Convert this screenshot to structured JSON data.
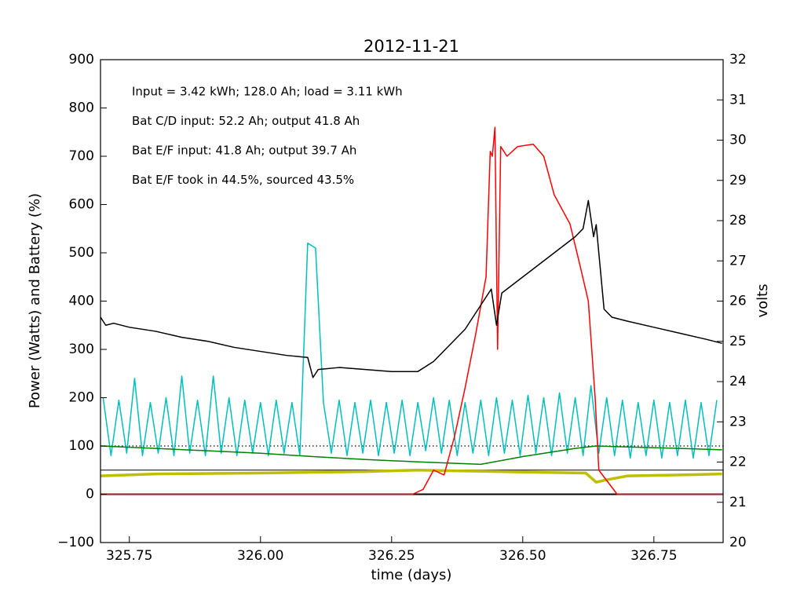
{
  "chart_data": {
    "type": "line",
    "title": "2012-11-21",
    "xlabel": "time (days)",
    "ylabel": "Power (Watts) and Battery (%)",
    "y2label": "volts",
    "annotations": [
      "Input = 3.42 kWh; 128.0 Ah; load = 3.11 kWh",
      "Bat C/D input: 52.2 Ah; output 41.8 Ah",
      "Bat E/F input: 41.8 Ah; output 39.7 Ah",
      "Bat E/F took in 44.5%, sourced 43.5%"
    ],
    "xlim": [
      325.695,
      326.882
    ],
    "xticks": [
      325.75,
      {
        "value": 326,
        "label": "326.00"
      },
      326.25,
      {
        "value": 326.5,
        "label": "326.50"
      },
      326.75
    ],
    "ylim": [
      -100,
      900
    ],
    "yticks": [
      {
        "value": -100,
        "label": "−100"
      },
      0,
      100,
      200,
      300,
      400,
      500,
      600,
      700,
      800,
      900
    ],
    "y2lim": [
      20,
      32
    ],
    "y2ticks": [
      20,
      21,
      22,
      23,
      24,
      25,
      26,
      27,
      28,
      29,
      30,
      31,
      32
    ],
    "hlines": [
      {
        "value": 100,
        "linestyle": "dotted",
        "linewidth": 1.3
      },
      {
        "value": 50,
        "linestyle": "solid",
        "linewidth": 1
      },
      {
        "value": 0,
        "linestyle": "solid",
        "linewidth": 2
      }
    ],
    "series": [
      {
        "color": "#00bfbf",
        "linewidth": 1.5,
        "x": [
          325.7,
          325.715,
          325.73,
          325.745,
          325.76,
          325.775,
          325.79,
          325.805,
          325.82,
          325.835,
          325.85,
          325.865,
          325.88,
          325.895,
          325.91,
          325.925,
          325.94,
          325.955,
          325.97,
          325.985,
          326.0,
          326.015,
          326.03,
          326.045,
          326.06,
          326.075,
          326.09,
          326.105,
          326.12,
          326.135,
          326.15,
          326.165,
          326.18,
          326.195,
          326.21,
          326.225,
          326.24,
          326.255,
          326.27,
          326.285,
          326.3,
          326.315,
          326.33,
          326.345,
          326.36,
          326.375,
          326.39,
          326.405,
          326.42,
          326.435,
          326.45,
          326.465,
          326.48,
          326.495,
          326.51,
          326.525,
          326.54,
          326.555,
          326.57,
          326.585,
          326.6,
          326.615,
          326.63,
          326.645,
          326.66,
          326.675,
          326.69,
          326.705,
          326.72,
          326.735,
          326.75,
          326.765,
          326.78,
          326.795,
          326.81,
          326.825,
          326.84,
          326.855,
          326.87
        ],
        "values": [
          200,
          80,
          195,
          85,
          240,
          80,
          190,
          85,
          200,
          80,
          245,
          85,
          195,
          80,
          245,
          85,
          200,
          80,
          195,
          85,
          190,
          80,
          195,
          85,
          190,
          80,
          520,
          510,
          190,
          85,
          195,
          80,
          190,
          85,
          195,
          80,
          190,
          85,
          195,
          80,
          190,
          90,
          200,
          85,
          195,
          80,
          190,
          85,
          195,
          80,
          200,
          85,
          195,
          80,
          205,
          85,
          200,
          80,
          210,
          85,
          200,
          80,
          225,
          85,
          200,
          80,
          195,
          75,
          190,
          80,
          195,
          75,
          190,
          80,
          195,
          75,
          190,
          80,
          195
        ]
      },
      {
        "color": "#008000",
        "linewidth": 1.5,
        "x": [
          325.695,
          325.8,
          325.9,
          326.0,
          326.1,
          326.2,
          326.3,
          326.42,
          326.5,
          326.6,
          326.64,
          326.7,
          326.8,
          326.88
        ],
        "values": [
          100,
          95,
          90,
          85,
          78,
          72,
          67,
          62,
          78,
          95,
          100,
          98,
          95,
          92
        ]
      },
      {
        "color": "#bfbf00",
        "linewidth": 3.5,
        "x": [
          325.695,
          325.8,
          326.0,
          326.2,
          326.3,
          326.4,
          326.5,
          326.62,
          326.64,
          326.66,
          326.7,
          326.8,
          326.88
        ],
        "values": [
          38,
          42,
          44,
          47,
          50,
          48,
          46,
          44,
          25,
          30,
          38,
          40,
          42
        ]
      },
      {
        "color": "#ff0000",
        "linewidth": 1.5,
        "x": [
          325.695,
          326.29,
          326.31,
          326.33,
          326.35,
          326.37,
          326.39,
          326.41,
          326.43,
          326.438,
          326.442,
          326.447,
          326.452,
          326.458,
          326.47,
          326.49,
          326.52,
          326.54,
          326.56,
          326.59,
          326.61,
          326.625,
          326.638,
          326.645,
          326.68,
          326.882
        ],
        "values": [
          0,
          0,
          10,
          50,
          40,
          120,
          220,
          330,
          450,
          710,
          700,
          760,
          300,
          720,
          700,
          720,
          725,
          700,
          620,
          560,
          470,
          400,
          200,
          50,
          0,
          0
        ]
      },
      {
        "color": "#000000",
        "linewidth": 1.5,
        "axis": "y2",
        "x": [
          325.695,
          325.705,
          325.72,
          325.75,
          325.8,
          325.85,
          325.9,
          325.95,
          326.0,
          326.05,
          326.09,
          326.1,
          326.11,
          326.15,
          326.2,
          326.25,
          326.3,
          326.33,
          326.36,
          326.39,
          326.42,
          326.44,
          326.45,
          326.46,
          326.5,
          326.55,
          326.6,
          326.615,
          326.625,
          326.635,
          326.64,
          326.655,
          326.67,
          326.7,
          326.75,
          326.8,
          326.85,
          326.88
        ],
        "values": [
          25.6,
          25.4,
          25.45,
          25.35,
          25.25,
          25.1,
          25.0,
          24.85,
          24.75,
          24.65,
          24.6,
          24.1,
          24.3,
          24.35,
          24.3,
          24.25,
          24.25,
          24.5,
          24.9,
          25.3,
          25.9,
          26.3,
          25.4,
          26.2,
          26.6,
          27.1,
          27.6,
          27.8,
          28.5,
          27.6,
          27.9,
          25.8,
          25.6,
          25.5,
          25.35,
          25.2,
          25.05,
          24.95
        ]
      }
    ]
  }
}
